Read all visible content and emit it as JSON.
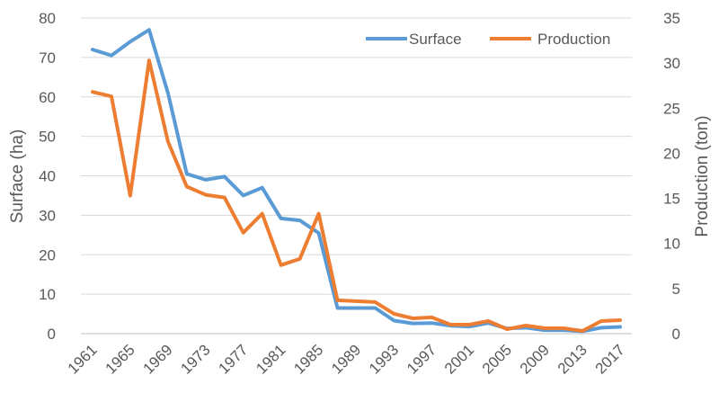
{
  "chart_data": {
    "type": "line",
    "x": [
      1961,
      1963,
      1965,
      1967,
      1969,
      1971,
      1973,
      1975,
      1977,
      1979,
      1981,
      1983,
      1985,
      1987,
      1989,
      1991,
      1993,
      1995,
      1997,
      1999,
      2001,
      2003,
      2005,
      2007,
      2009,
      2011,
      2013,
      2015,
      2017
    ],
    "x_tick_labels": [
      "1961",
      "1965",
      "1969",
      "1973",
      "1977",
      "1981",
      "1985",
      "1989",
      "1993",
      "1997",
      "2001",
      "2005",
      "2009",
      "2013",
      "2017"
    ],
    "series": [
      {
        "name": "Surface",
        "axis": "left",
        "color": "#5b9bd5",
        "values": [
          72,
          70.5,
          74,
          77,
          61,
          40.5,
          39,
          39.8,
          35,
          37,
          29.2,
          28.7,
          25.5,
          6.5,
          6.5,
          6.5,
          3.3,
          2.6,
          2.7,
          2,
          1.8,
          2.7,
          1.3,
          1.5,
          0.9,
          0.9,
          0.6,
          1.5,
          1.7
        ]
      },
      {
        "name": "Production",
        "axis": "right",
        "color": "#ed7d31",
        "values": [
          26.8,
          26.3,
          15.3,
          30.3,
          21.3,
          16.3,
          15.4,
          15.1,
          11.2,
          13.3,
          7.6,
          8.3,
          13.3,
          3.7,
          3.6,
          3.5,
          2.2,
          1.7,
          1.8,
          1,
          1,
          1.4,
          0.5,
          0.9,
          0.6,
          0.6,
          0.3,
          1.4,
          1.5
        ]
      }
    ],
    "y_left": {
      "label": "Surface (ha)",
      "ylim": [
        0,
        80
      ],
      "ticks": [
        "0",
        "10",
        "20",
        "30",
        "40",
        "50",
        "60",
        "70",
        "80"
      ]
    },
    "y_right": {
      "label": "Production (ton)",
      "ylim": [
        0,
        35
      ],
      "ticks": [
        "0",
        "5",
        "10",
        "15",
        "20",
        "25",
        "30",
        "35"
      ]
    },
    "grid": true,
    "legend_position": "top-right"
  }
}
